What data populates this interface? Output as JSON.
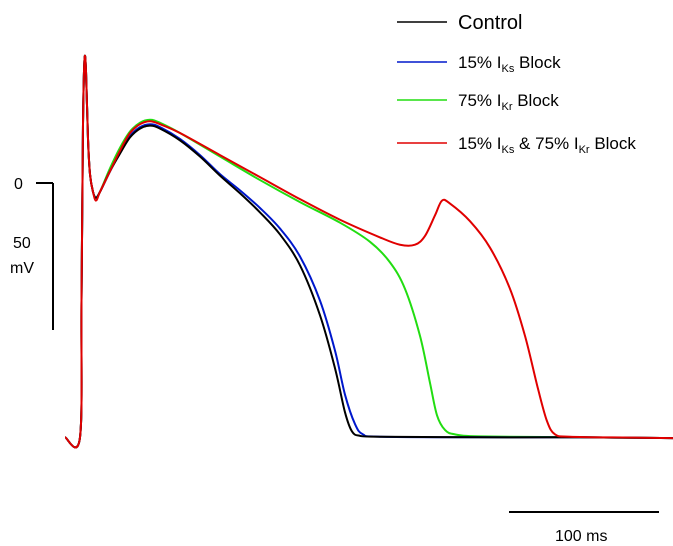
{
  "chart_data": {
    "type": "line",
    "title": "",
    "xlabel": "",
    "ylabel": "",
    "xlim": [
      -15,
      600
    ],
    "ylim": [
      -95,
      55
    ],
    "grid": false,
    "legend_position": "top-right",
    "scale_bars": {
      "voltage": {
        "zero_label": "0",
        "value_label": "50",
        "unit_label": "mV"
      },
      "time": {
        "label": "100 ms"
      }
    },
    "series": [
      {
        "name": "Control",
        "legend": {
          "pre": "Control"
        },
        "color": "#000000",
        "points": [
          [
            -15,
            -86.5
          ],
          [
            0,
            -86.5
          ],
          [
            1.5,
            -40
          ],
          [
            3,
            20
          ],
          [
            4.5,
            42
          ],
          [
            6,
            38
          ],
          [
            8,
            15
          ],
          [
            10,
            3
          ],
          [
            13,
            -3
          ],
          [
            16,
            -5
          ],
          [
            20,
            -3
          ],
          [
            30,
            4
          ],
          [
            40,
            10
          ],
          [
            50,
            15.5
          ],
          [
            60,
            18.5
          ],
          [
            70,
            19.5
          ],
          [
            80,
            18.5
          ],
          [
            100,
            14.5
          ],
          [
            120,
            9
          ],
          [
            140,
            2.5
          ],
          [
            160,
            -3.5
          ],
          [
            180,
            -10
          ],
          [
            200,
            -17.5
          ],
          [
            220,
            -28
          ],
          [
            240,
            -45
          ],
          [
            255,
            -63
          ],
          [
            265,
            -78
          ],
          [
            272,
            -84.5
          ],
          [
            280,
            -86
          ],
          [
            300,
            -86.3
          ],
          [
            400,
            -86.5
          ],
          [
            500,
            -86.5
          ],
          [
            597,
            -86.8
          ]
        ]
      },
      {
        "name": "15% I_Ks Block",
        "legend": {
          "pre": "15% I",
          "sub": "Ks",
          "post": " Block"
        },
        "color": "#0018cc",
        "points": [
          [
            -15,
            -86.5
          ],
          [
            0,
            -86.5
          ],
          [
            1.5,
            -40
          ],
          [
            3,
            20
          ],
          [
            4.5,
            42
          ],
          [
            6,
            38
          ],
          [
            8,
            15
          ],
          [
            10,
            3
          ],
          [
            13,
            -3
          ],
          [
            16,
            -5
          ],
          [
            20,
            -3
          ],
          [
            30,
            4
          ],
          [
            40,
            10.5
          ],
          [
            50,
            16
          ],
          [
            60,
            19
          ],
          [
            70,
            20
          ],
          [
            80,
            19
          ],
          [
            100,
            15
          ],
          [
            120,
            9.5
          ],
          [
            140,
            3
          ],
          [
            160,
            -2.5
          ],
          [
            180,
            -8.5
          ],
          [
            200,
            -15.5
          ],
          [
            220,
            -25
          ],
          [
            240,
            -40
          ],
          [
            255,
            -57
          ],
          [
            265,
            -72
          ],
          [
            275,
            -82
          ],
          [
            283,
            -85.5
          ],
          [
            300,
            -86.3
          ],
          [
            400,
            -86.5
          ],
          [
            500,
            -86.5
          ],
          [
            597,
            -86.8
          ]
        ]
      },
      {
        "name": "75% I_Kr Block",
        "legend": {
          "pre": "75% I",
          "sub": "Kr",
          "post": " Block"
        },
        "color": "#22dd11",
        "points": [
          [
            -15,
            -86.5
          ],
          [
            0,
            -86.5
          ],
          [
            1.5,
            -40
          ],
          [
            3,
            20
          ],
          [
            4.5,
            42
          ],
          [
            6,
            38
          ],
          [
            8,
            15
          ],
          [
            10,
            3
          ],
          [
            13,
            -3
          ],
          [
            16,
            -5
          ],
          [
            20,
            -3
          ],
          [
            30,
            5
          ],
          [
            40,
            12
          ],
          [
            50,
            17.5
          ],
          [
            60,
            20.5
          ],
          [
            70,
            21.5
          ],
          [
            80,
            20.5
          ],
          [
            100,
            17
          ],
          [
            140,
            9
          ],
          [
            180,
            1
          ],
          [
            220,
            -6.5
          ],
          [
            260,
            -13.5
          ],
          [
            290,
            -20
          ],
          [
            310,
            -27
          ],
          [
            325,
            -36
          ],
          [
            340,
            -52
          ],
          [
            350,
            -68
          ],
          [
            357,
            -79
          ],
          [
            365,
            -84
          ],
          [
            375,
            -85.5
          ],
          [
            400,
            -86.2
          ],
          [
            500,
            -86.5
          ],
          [
            597,
            -86.8
          ]
        ]
      },
      {
        "name": "15% I_Ks & 75% I_Kr Block",
        "legend": {
          "pre": "15% I",
          "sub": "Ks",
          "mid": " & 75% I",
          "sub2": "Kr",
          "post": " Block"
        },
        "color": "#e00000",
        "points": [
          [
            -15,
            -86.5
          ],
          [
            0,
            -86.5
          ],
          [
            1.5,
            -40
          ],
          [
            3,
            20
          ],
          [
            4.5,
            42
          ],
          [
            6,
            38
          ],
          [
            8,
            15
          ],
          [
            10,
            3
          ],
          [
            13,
            -3
          ],
          [
            16,
            -6
          ],
          [
            20,
            -3
          ],
          [
            30,
            4
          ],
          [
            40,
            11
          ],
          [
            50,
            17
          ],
          [
            60,
            20
          ],
          [
            70,
            21
          ],
          [
            80,
            20
          ],
          [
            100,
            17
          ],
          [
            140,
            9.5
          ],
          [
            180,
            2
          ],
          [
            220,
            -5.5
          ],
          [
            260,
            -12.5
          ],
          [
            300,
            -18.5
          ],
          [
            320,
            -21
          ],
          [
            335,
            -21
          ],
          [
            345,
            -18
          ],
          [
            355,
            -11
          ],
          [
            362,
            -6
          ],
          [
            370,
            -7
          ],
          [
            390,
            -13
          ],
          [
            410,
            -22
          ],
          [
            430,
            -36
          ],
          [
            445,
            -52
          ],
          [
            458,
            -70
          ],
          [
            467,
            -81
          ],
          [
            475,
            -85.5
          ],
          [
            490,
            -86.3
          ],
          [
            550,
            -86.6
          ],
          [
            597,
            -86.8
          ]
        ]
      }
    ]
  }
}
